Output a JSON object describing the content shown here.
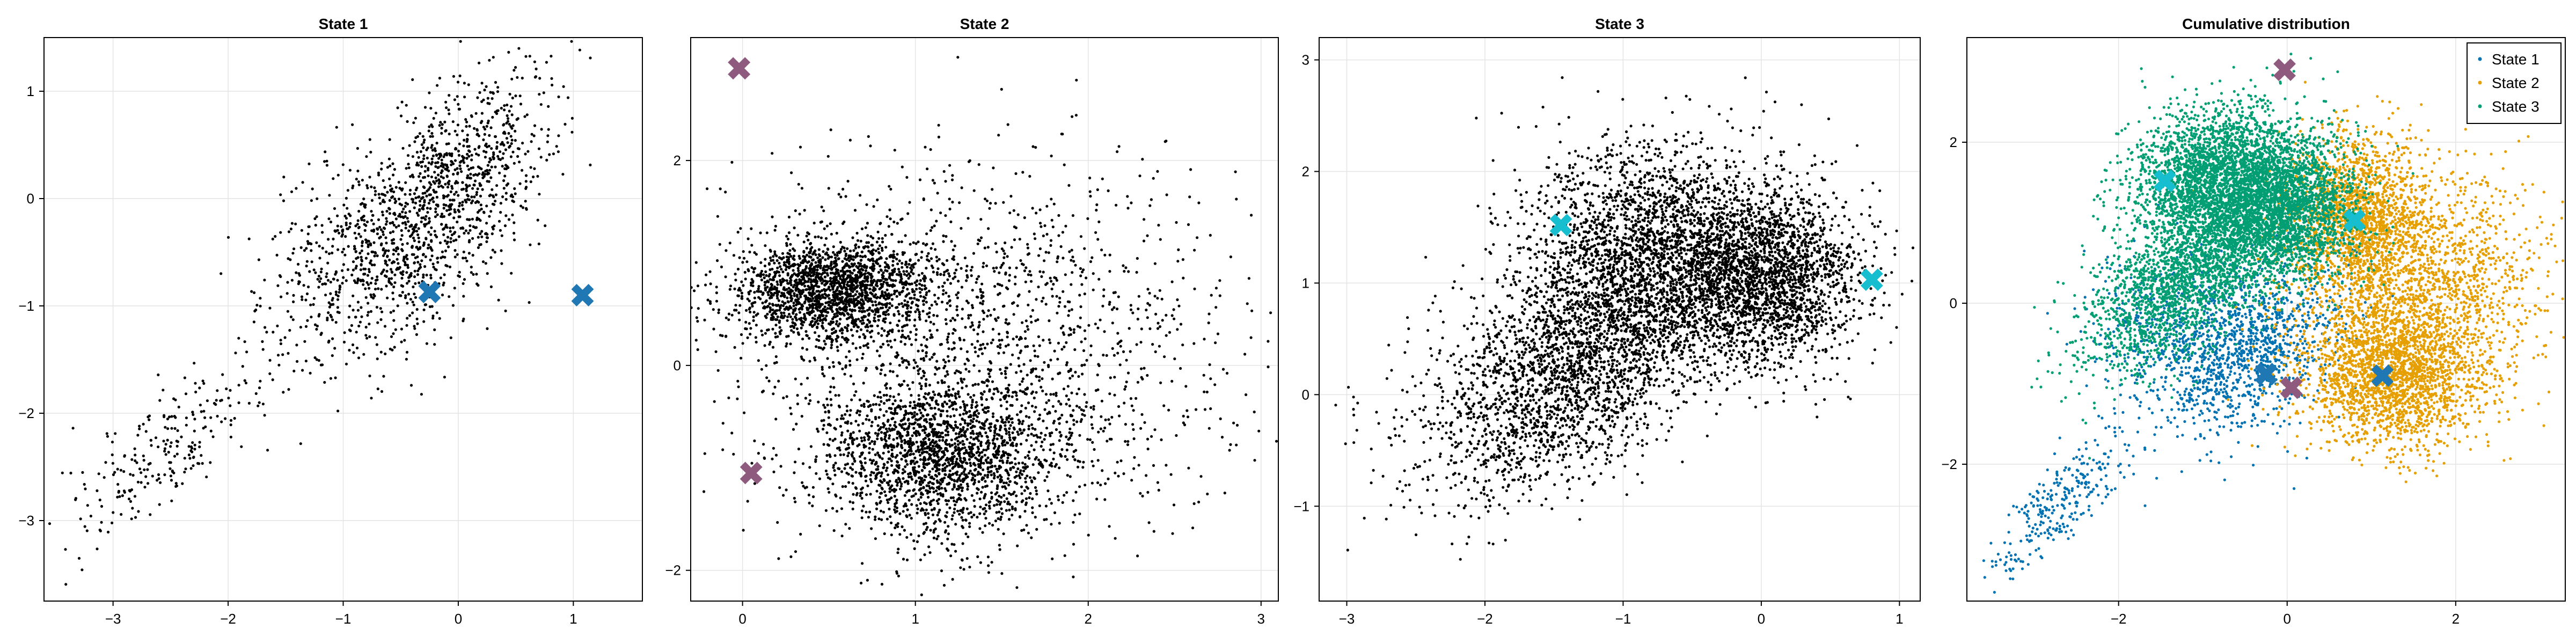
{
  "chart_data": [
    {
      "type": "scatter",
      "title": "State 1",
      "xlim": [
        -3.6,
        1.6
      ],
      "ylim": [
        -3.75,
        1.5
      ],
      "xticks": [
        -3,
        -2,
        -1,
        0,
        1
      ],
      "yticks": [
        -3,
        -2,
        -1,
        0,
        1
      ],
      "grid": true,
      "series": [
        {
          "color": "#000000",
          "count": 1800,
          "clusters": [
            [
              -0.55,
              -0.45,
              0.55,
              0.55,
              0.45,
              0.55
            ],
            [
              0.05,
              0.35,
              0.35,
              0.45,
              0.45,
              0.3
            ],
            [
              -2.6,
              -2.4,
              0.45,
              0.45,
              0.8,
              0.15
            ]
          ]
        }
      ],
      "markers": [
        {
          "x": -0.25,
          "y": -0.87,
          "color": "#1f77b4"
        },
        {
          "x": 1.08,
          "y": -0.9,
          "color": "#1f77b4"
        }
      ]
    },
    {
      "type": "scatter",
      "title": "State 2",
      "xlim": [
        -0.3,
        3.1
      ],
      "ylim": [
        -2.3,
        3.2
      ],
      "xticks": [
        0,
        1,
        2,
        3
      ],
      "yticks": [
        -2,
        0,
        2
      ],
      "grid": true,
      "series": [
        {
          "color": "#000000",
          "count": 5200,
          "clusters": [
            [
              0.5,
              0.75,
              0.28,
              0.25,
              0.1,
              0.35
            ],
            [
              1.15,
              -0.9,
              0.35,
              0.38,
              0.0,
              0.35
            ],
            [
              1.4,
              0.2,
              0.7,
              0.9,
              0.0,
              0.3
            ]
          ]
        }
      ],
      "markers": [
        {
          "x": -0.02,
          "y": 2.9,
          "color": "#8e5a7e"
        },
        {
          "x": 0.05,
          "y": -1.05,
          "color": "#8e5a7e"
        }
      ]
    },
    {
      "type": "scatter",
      "title": "State 3",
      "xlim": [
        -3.2,
        1.15
      ],
      "ylim": [
        -1.85,
        3.2
      ],
      "xticks": [
        -3,
        -2,
        -1,
        0,
        1
      ],
      "yticks": [
        -1,
        0,
        1,
        2,
        3
      ],
      "grid": true,
      "series": [
        {
          "color": "#000000",
          "count": 6800,
          "clusters": [
            [
              0.0,
              1.05,
              0.35,
              0.38,
              0.0,
              0.35
            ],
            [
              -0.9,
              1.4,
              0.45,
              0.45,
              0.2,
              0.25
            ],
            [
              -1.3,
              0.3,
              0.6,
              0.6,
              0.6,
              0.4
            ]
          ]
        }
      ],
      "markers": [
        {
          "x": -1.45,
          "y": 1.52,
          "color": "#17becf"
        },
        {
          "x": 0.8,
          "y": 1.03,
          "color": "#17becf"
        }
      ]
    },
    {
      "type": "scatter",
      "title": "Cumulative distribution",
      "xlim": [
        -3.8,
        3.3
      ],
      "ylim": [
        -3.7,
        3.3
      ],
      "xticks": [
        -2,
        0,
        2
      ],
      "yticks": [
        -2,
        0,
        2
      ],
      "grid": true,
      "legend": {
        "position": "top-right",
        "entries": [
          "State 1",
          "State 2",
          "State 3"
        ]
      },
      "series": [
        {
          "name": "State 1",
          "color": "#0072b2",
          "count": 1800,
          "clusters": [
            [
              -0.4,
              -0.6,
              0.55,
              0.55,
              0.45,
              0.55
            ],
            [
              -1.2,
              -0.3,
              0.5,
              0.5,
              0.0,
              0.3
            ],
            [
              -2.7,
              -2.5,
              0.4,
              0.45,
              0.8,
              0.15
            ]
          ]
        },
        {
          "name": "State 2",
          "color": "#e69f00",
          "count": 5200,
          "clusters": [
            [
              1.25,
              -0.9,
              0.55,
              0.45,
              0.0,
              0.4
            ],
            [
              0.8,
              1.1,
              0.4,
              0.5,
              0.0,
              0.3
            ],
            [
              1.6,
              0.3,
              0.7,
              0.7,
              0.0,
              0.3
            ]
          ]
        },
        {
          "name": "State 3",
          "color": "#009e73",
          "count": 6800,
          "clusters": [
            [
              -0.1,
              1.2,
              0.45,
              0.45,
              0.0,
              0.4
            ],
            [
              -0.9,
              1.6,
              0.5,
              0.45,
              0.2,
              0.3
            ],
            [
              -1.2,
              0.3,
              0.6,
              0.55,
              0.6,
              0.3
            ]
          ]
        }
      ],
      "markers": [
        {
          "x": -0.03,
          "y": 2.9,
          "color": "#8e5a7e"
        },
        {
          "x": 0.05,
          "y": -1.05,
          "color": "#8e5a7e"
        },
        {
          "x": 1.13,
          "y": -0.9,
          "color": "#1f77b4"
        },
        {
          "x": -0.25,
          "y": -0.88,
          "color": "#1f77b4"
        },
        {
          "x": -1.45,
          "y": 1.52,
          "color": "#17becf"
        },
        {
          "x": 0.8,
          "y": 1.03,
          "color": "#17becf"
        }
      ]
    }
  ]
}
